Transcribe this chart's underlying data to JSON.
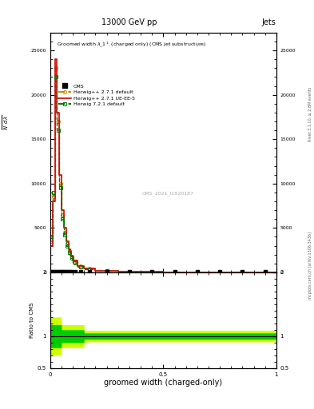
{
  "title_top": "13000 GeV pp",
  "title_right": "Jets",
  "main_title": "Groomed width λ_1¹  (charged only) (CMS jet substructure)",
  "xlabel": "groomed width (charged-only)",
  "ylabel_ratio": "Ratio to CMS",
  "watermark": "CMS_2021_I1920187",
  "right_label_top": "Rivet 3.1.10, ≥ 2.8M events",
  "right_label_bot": "mcplots.cern.ch [arXiv:1306.3436]",
  "bin_edges": [
    0.0,
    0.01,
    0.02,
    0.03,
    0.04,
    0.05,
    0.06,
    0.07,
    0.08,
    0.09,
    0.1,
    0.12,
    0.15,
    0.2,
    0.3,
    0.4,
    0.5,
    0.6,
    0.7,
    0.8,
    0.9,
    1.0
  ],
  "cms_y": [
    100,
    150,
    50,
    30,
    20,
    15,
    10,
    8,
    5,
    4,
    3,
    2,
    1,
    0.5,
    0.2,
    0.1,
    0.05,
    0.02,
    0.01,
    0.005,
    0.002
  ],
  "herwig_def_y": [
    3500,
    8500,
    23000,
    17000,
    10000,
    6500,
    4500,
    3200,
    2400,
    1800,
    1200,
    700,
    400,
    180,
    80,
    35,
    15,
    6,
    3,
    1,
    0.5
  ],
  "herwig_ueee5_y": [
    3000,
    8000,
    24000,
    18000,
    11000,
    7000,
    5000,
    3500,
    2600,
    1900,
    1300,
    750,
    430,
    200,
    90,
    38,
    16,
    7,
    3,
    1,
    0.5
  ],
  "herwig721_y": [
    4000,
    9000,
    22000,
    16000,
    9500,
    6000,
    4200,
    3000,
    2200,
    1650,
    1100,
    650,
    370,
    160,
    70,
    32,
    13,
    5,
    2.5,
    1,
    0.5
  ],
  "ylim_main": [
    0,
    27000
  ],
  "ylim_ratio": [
    0.5,
    2.0
  ],
  "xlim": [
    0,
    1
  ],
  "colors": {
    "cms": "#000000",
    "herwig_default": "#cc8800",
    "herwig_ueee5": "#cc0000",
    "herwig721": "#007700"
  },
  "ratio_band_inner_color": "#00cc00",
  "ratio_band_outer_color": "#ccff00"
}
